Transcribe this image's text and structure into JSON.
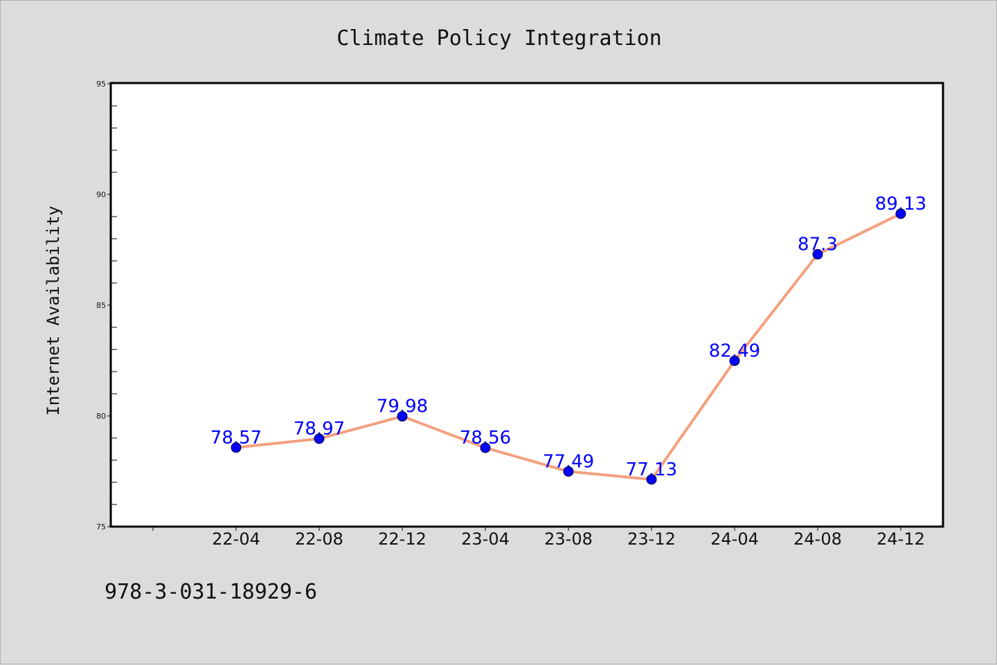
{
  "chart_data": {
    "type": "line",
    "title": "Climate Policy Integration",
    "xlabel": "",
    "ylabel": "Internet Availability",
    "categories": [
      "22-04",
      "22-08",
      "22-12",
      "23-04",
      "23-08",
      "23-12",
      "24-04",
      "24-08",
      "24-12"
    ],
    "series": [
      {
        "values": [
          78.57,
          78.97,
          79.98,
          78.56,
          77.49,
          77.13,
          82.49,
          87.3,
          89.13
        ],
        "data_labels": [
          "78.57",
          "78.97",
          "79.98",
          "78.56",
          "77.49",
          "77.13",
          "82.49",
          "87.3",
          "89.13"
        ],
        "line_color": "#f4a07e",
        "marker_color": "#0000ff"
      }
    ],
    "ylim": [
      75,
      95
    ],
    "yticks": [
      "75",
      "80",
      "85",
      "90",
      "95"
    ],
    "grid": false,
    "legend": "none"
  },
  "footer": {
    "isbn": "978-3-031-18929-6"
  }
}
